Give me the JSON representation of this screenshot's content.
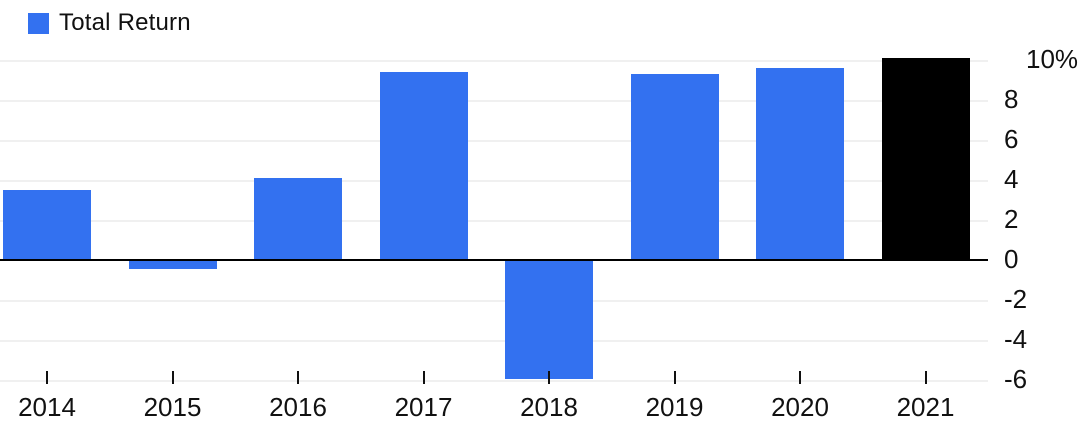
{
  "chart_data": {
    "type": "bar",
    "title": "",
    "legend": "Total Return",
    "legend_position": "top-left",
    "categories": [
      "2014",
      "2015",
      "2016",
      "2017",
      "2018",
      "2019",
      "2020",
      "2021"
    ],
    "series": [
      {
        "name": "Total Return",
        "values": [
          3.5,
          -0.4,
          4.1,
          9.4,
          -5.9,
          9.3,
          9.6,
          10.1
        ]
      }
    ],
    "unit": "%",
    "ylim": [
      -6,
      10.2
    ],
    "yticks": [
      10,
      8,
      6,
      4,
      2,
      0,
      -2,
      -4,
      -6
    ],
    "ytick_labels": [
      "10%",
      "8",
      "6",
      "4",
      "2",
      "0",
      "-2",
      "-4",
      "-6"
    ],
    "grid": true,
    "bar_colors": [
      "#3371F0",
      "#3371F0",
      "#3371F0",
      "#3371F0",
      "#3371F0",
      "#3371F0",
      "#3371F0",
      "#000000"
    ],
    "colors": {
      "bar_default": "#3371F0",
      "bar_highlight": "#000000",
      "highlight_category": "2021",
      "gridline": "#f0f0f0",
      "zero_line": "#000000",
      "text": "#111111",
      "background": "#ffffff"
    }
  }
}
